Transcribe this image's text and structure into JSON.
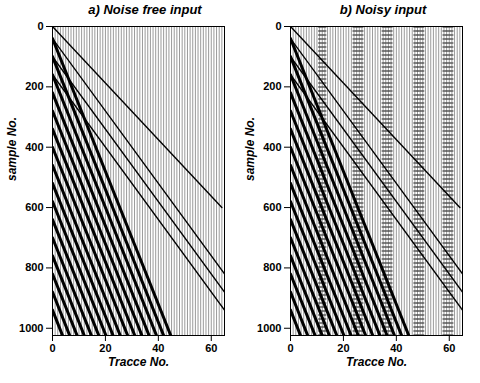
{
  "chart_data": [
    {
      "type": "line",
      "title": "a) Noise free input",
      "xlabel": "Tracce No.",
      "ylabel": "sample No.",
      "xlim": [
        0,
        65
      ],
      "ylim": [
        0,
        1024
      ],
      "xticks": [
        0,
        20,
        40,
        60
      ],
      "yticks": [
        0,
        200,
        400,
        600,
        800,
        1000
      ],
      "traces": [
        1,
        2,
        3,
        4,
        5,
        6,
        7,
        8,
        9,
        10,
        11,
        12,
        13,
        14,
        15,
        16,
        17,
        18,
        19,
        20,
        21,
        22,
        23,
        24,
        25,
        26,
        27,
        28,
        29,
        30,
        31,
        32,
        33,
        34,
        35,
        36,
        37,
        38,
        39,
        40,
        41,
        42,
        43,
        44,
        45,
        46,
        47,
        48,
        49,
        50,
        51,
        52,
        53,
        54,
        55,
        56,
        57,
        58,
        59,
        60,
        61,
        62,
        63,
        64
      ],
      "noisy_traces": [],
      "events": [
        {
          "x": [
            0,
            64
          ],
          "y": [
            0,
            600
          ],
          "line_style": "thin"
        },
        {
          "x": [
            0,
            65
          ],
          "y": [
            40,
            820
          ],
          "line_style": "thin"
        },
        {
          "x": [
            0,
            65
          ],
          "y": [
            100,
            880
          ],
          "line_style": "thin"
        },
        {
          "x": [
            0,
            65
          ],
          "y": [
            160,
            940
          ],
          "line_style": "thin"
        },
        {
          "x": [
            0,
            44.7
          ],
          "y": [
            40,
            1024
          ],
          "line_style": "bold"
        },
        {
          "x": [
            0,
            42.0
          ],
          "y": [
            100,
            1024
          ],
          "line_style": "bold"
        },
        {
          "x": [
            0,
            39.3
          ],
          "y": [
            160,
            1024
          ],
          "line_style": "bold"
        },
        {
          "x": [
            0,
            36.5
          ],
          "y": [
            220,
            1024
          ],
          "line_style": "bold"
        },
        {
          "x": [
            0,
            33.8
          ],
          "y": [
            280,
            1024
          ],
          "line_style": "bold"
        },
        {
          "x": [
            0,
            31.1
          ],
          "y": [
            340,
            1024
          ],
          "line_style": "bold"
        },
        {
          "x": [
            0,
            28.4
          ],
          "y": [
            400,
            1024
          ],
          "line_style": "bold"
        },
        {
          "x": [
            0,
            25.6
          ],
          "y": [
            460,
            1024
          ],
          "line_style": "bold"
        },
        {
          "x": [
            0,
            22.9
          ],
          "y": [
            520,
            1024
          ],
          "line_style": "bold"
        },
        {
          "x": [
            0,
            20.2
          ],
          "y": [
            580,
            1024
          ],
          "line_style": "bold"
        },
        {
          "x": [
            0,
            17.5
          ],
          "y": [
            640,
            1024
          ],
          "line_style": "bold"
        },
        {
          "x": [
            0,
            14.7
          ],
          "y": [
            700,
            1024
          ],
          "line_style": "bold"
        },
        {
          "x": [
            0,
            12.0
          ],
          "y": [
            760,
            1024
          ],
          "line_style": "bold"
        },
        {
          "x": [
            0,
            9.3
          ],
          "y": [
            820,
            1024
          ],
          "line_style": "bold"
        },
        {
          "x": [
            0,
            6.5
          ],
          "y": [
            880,
            1024
          ],
          "line_style": "bold"
        },
        {
          "x": [
            0,
            3.8
          ],
          "y": [
            940,
            1024
          ],
          "line_style": "bold"
        }
      ]
    },
    {
      "type": "line",
      "title": "b) Noisy input",
      "xlabel": "Tracce No.",
      "ylabel": "sample No.",
      "xlim": [
        0,
        65
      ],
      "ylim": [
        0,
        1024
      ],
      "xticks": [
        0,
        20,
        40,
        60
      ],
      "yticks": [
        0,
        200,
        400,
        600,
        800,
        1000
      ],
      "traces": [
        1,
        2,
        3,
        4,
        5,
        6,
        7,
        8,
        9,
        10,
        11,
        12,
        13,
        14,
        15,
        16,
        17,
        18,
        19,
        20,
        21,
        22,
        23,
        24,
        25,
        26,
        27,
        28,
        29,
        30,
        31,
        32,
        33,
        34,
        35,
        36,
        37,
        38,
        39,
        40,
        41,
        42,
        43,
        44,
        45,
        46,
        47,
        48,
        49,
        50,
        51,
        52,
        53,
        54,
        55,
        56,
        57,
        58,
        59,
        60,
        61,
        62,
        63,
        64
      ],
      "noisy_traces": [
        11,
        12,
        13,
        24,
        25,
        26,
        27,
        35,
        36,
        37,
        38,
        47,
        48,
        49,
        50,
        58,
        59,
        60,
        61
      ],
      "events": [
        {
          "x": [
            0,
            64
          ],
          "y": [
            0,
            600
          ],
          "line_style": "thin"
        },
        {
          "x": [
            0,
            65
          ],
          "y": [
            40,
            820
          ],
          "line_style": "thin"
        },
        {
          "x": [
            0,
            65
          ],
          "y": [
            100,
            880
          ],
          "line_style": "thin"
        },
        {
          "x": [
            0,
            65
          ],
          "y": [
            160,
            940
          ],
          "line_style": "thin"
        },
        {
          "x": [
            0,
            44.7
          ],
          "y": [
            40,
            1024
          ],
          "line_style": "bold"
        },
        {
          "x": [
            0,
            42.0
          ],
          "y": [
            100,
            1024
          ],
          "line_style": "bold"
        },
        {
          "x": [
            0,
            39.3
          ],
          "y": [
            160,
            1024
          ],
          "line_style": "bold"
        },
        {
          "x": [
            0,
            36.5
          ],
          "y": [
            220,
            1024
          ],
          "line_style": "bold"
        },
        {
          "x": [
            0,
            33.8
          ],
          "y": [
            280,
            1024
          ],
          "line_style": "bold"
        },
        {
          "x": [
            0,
            31.1
          ],
          "y": [
            340,
            1024
          ],
          "line_style": "bold"
        },
        {
          "x": [
            0,
            28.4
          ],
          "y": [
            400,
            1024
          ],
          "line_style": "bold"
        },
        {
          "x": [
            0,
            25.6
          ],
          "y": [
            460,
            1024
          ],
          "line_style": "bold"
        },
        {
          "x": [
            0,
            22.9
          ],
          "y": [
            520,
            1024
          ],
          "line_style": "bold"
        },
        {
          "x": [
            0,
            20.2
          ],
          "y": [
            580,
            1024
          ],
          "line_style": "bold"
        },
        {
          "x": [
            0,
            17.5
          ],
          "y": [
            640,
            1024
          ],
          "line_style": "bold"
        },
        {
          "x": [
            0,
            14.7
          ],
          "y": [
            700,
            1024
          ],
          "line_style": "bold"
        },
        {
          "x": [
            0,
            12.0
          ],
          "y": [
            760,
            1024
          ],
          "line_style": "bold"
        },
        {
          "x": [
            0,
            9.3
          ],
          "y": [
            820,
            1024
          ],
          "line_style": "bold"
        },
        {
          "x": [
            0,
            6.5
          ],
          "y": [
            880,
            1024
          ],
          "line_style": "bold"
        },
        {
          "x": [
            0,
            3.8
          ],
          "y": [
            940,
            1024
          ],
          "line_style": "bold"
        }
      ]
    }
  ]
}
